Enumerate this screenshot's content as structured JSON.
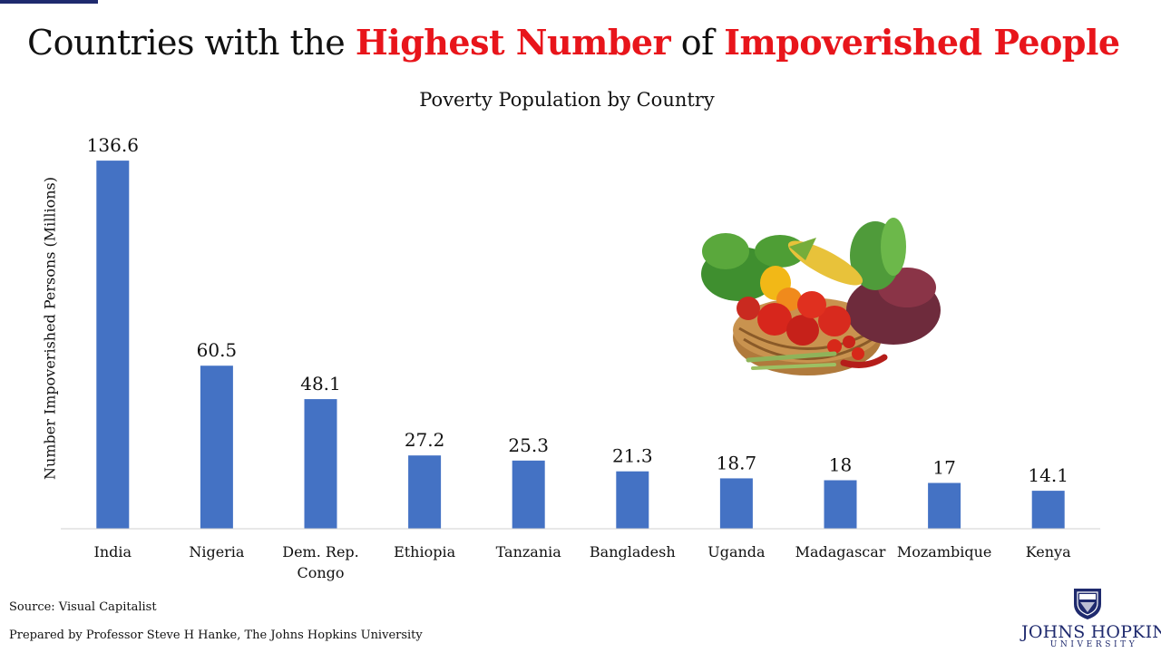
{
  "header": {
    "title_part1": "Countries with the ",
    "title_highlight1": "Highest Number",
    "title_part2": " of ",
    "title_highlight2": "Impoverished People",
    "highlight_color": "#e8151b"
  },
  "chart_data": {
    "type": "bar",
    "title": "Poverty Population by Country",
    "xlabel": "",
    "ylabel": "Number Impoverished Persons (Millions)",
    "categories": [
      "India",
      "Nigeria",
      "Dem. Rep. Congo",
      "Ethiopia",
      "Tanzania",
      "Bangladesh",
      "Uganda",
      "Madagascar",
      "Mozambique",
      "Kenya"
    ],
    "values": [
      136.6,
      60.5,
      48.1,
      27.2,
      25.3,
      21.3,
      18.7,
      18,
      17,
      14.1
    ],
    "value_labels": [
      "136.6",
      "60.5",
      "48.1",
      "27.2",
      "25.3",
      "21.3",
      "18.7",
      "18",
      "17",
      "14.1"
    ],
    "ylim": [
      0,
      140
    ],
    "grid": false,
    "legend": "none",
    "bar_color": "#4472c4"
  },
  "illustration": {
    "icon": "vegetable-basket-icon"
  },
  "footer": {
    "source": "Source: Visual Capitalist",
    "prepared_by": "Prepared by Professor Steve H Hanke, The Johns Hopkins University",
    "logo_name": "JOHNS HOPKINS",
    "logo_sub": "UNIVERSITY",
    "logo_icon": "shield-crest-icon",
    "logo_color": "#1f2a6e"
  }
}
